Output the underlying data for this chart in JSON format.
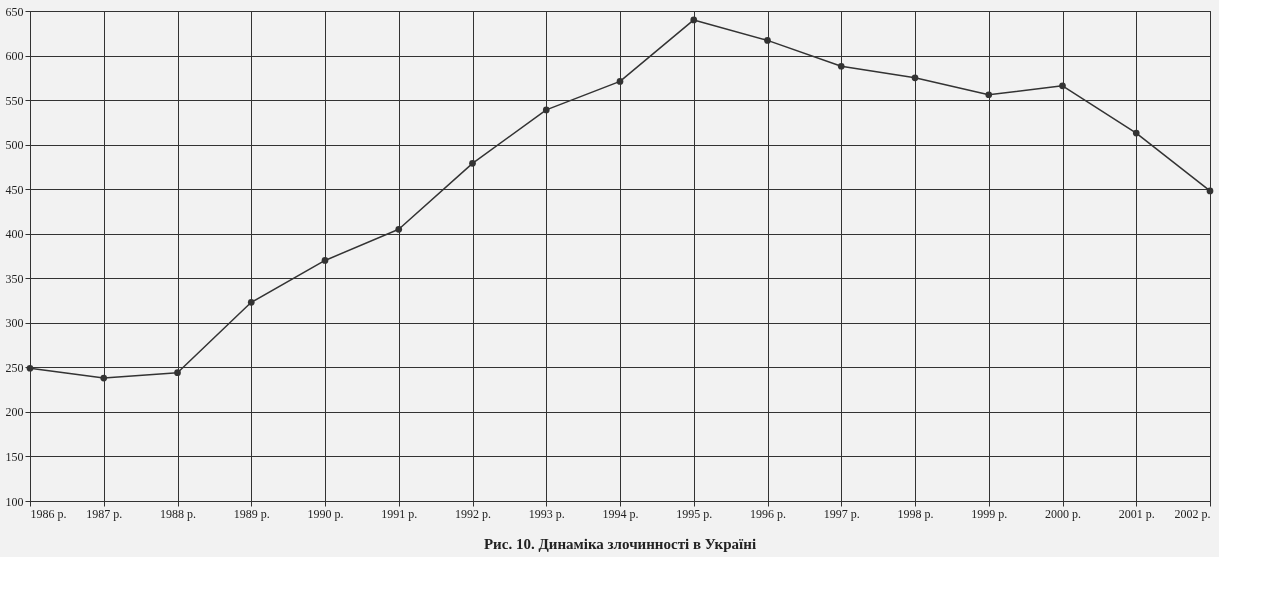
{
  "chart_data": {
    "type": "line",
    "title": "Рис. 10. Динаміка злочинності в Україні",
    "categories": [
      "1986 р.",
      "1987 р.",
      "1988 р.",
      "1989 р.",
      "1990 р.",
      "1991 р.",
      "1992 р.",
      "1993 р.",
      "1994 р.",
      "1995 р.",
      "1996 р.",
      "1997 р.",
      "1998 р.",
      "1999 р.",
      "2000 р.",
      "2001 р.",
      "2002 р."
    ],
    "series": [
      {
        "color": "#333333",
        "values": [
          249,
          238,
          244,
          323,
          370,
          405,
          479,
          539,
          571,
          640,
          617,
          588,
          575,
          556,
          566,
          513,
          448
        ]
      }
    ],
    "ylim": [
      100,
      650
    ],
    "yticks": [
      100,
      150,
      200,
      250,
      300,
      350,
      400,
      450,
      500,
      550,
      600,
      650
    ],
    "grid": true,
    "marker": "circle",
    "line_style": "solid",
    "legend": false
  }
}
